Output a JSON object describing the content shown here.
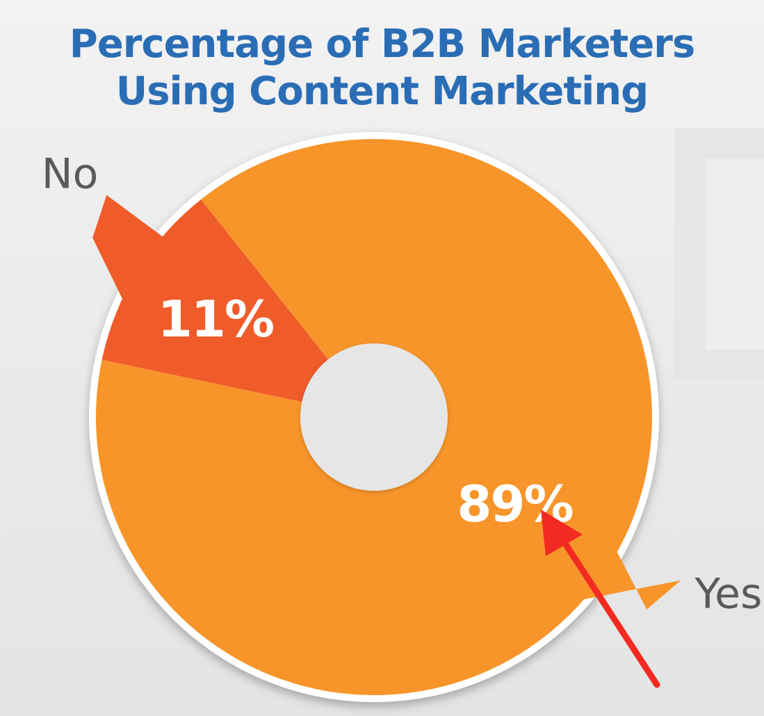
{
  "chart_data": {
    "type": "pie",
    "title": [
      "Percentage of B2B Marketers",
      "Using Content Marketing"
    ],
    "categories": [
      "Yes",
      "No"
    ],
    "values": [
      89,
      11
    ],
    "data_labels": [
      "89%",
      "11%"
    ],
    "legend": "labels beside slices",
    "donut": true,
    "colors": {
      "Yes": "#f7952a",
      "No": "#f05b2a",
      "title": "#2a6db5",
      "category_label": "#5a5a5a",
      "data_label": "#ffffff",
      "arrow": "#f32a22"
    }
  }
}
